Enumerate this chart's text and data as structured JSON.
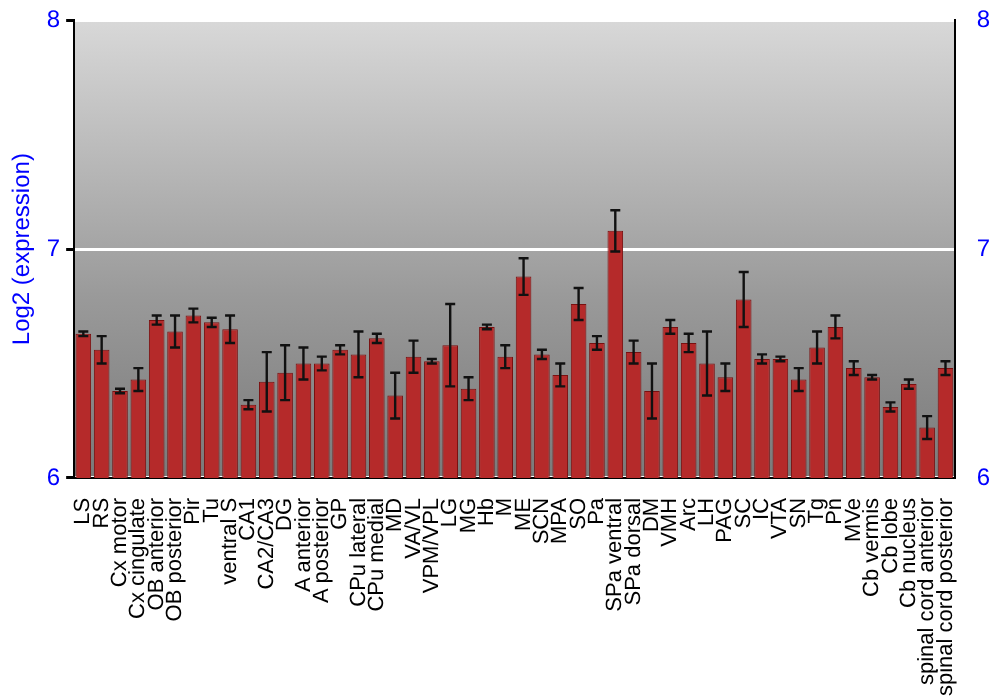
{
  "chart_data": {
    "type": "bar",
    "ylabel": "Log2 (expression)",
    "categories": [
      "LS",
      "RS",
      "Cx motor",
      "Cx cingulate",
      "OB anterior",
      "OB posterior",
      "Pir",
      "Tu",
      "ventral S",
      "CA1",
      "CA2/CA3",
      "DG",
      "A anterior",
      "A posterior",
      "GP",
      "CPu lateral",
      "CPu medial",
      "MD",
      "VA/VL",
      "VPM/VPL",
      "LG",
      "MG",
      "Hb",
      "M",
      "ME",
      "SCN",
      "MPA",
      "SO",
      "Pa",
      "SPa ventral",
      "SPa dorsal",
      "DM",
      "VMH",
      "Arc",
      "LH",
      "PAG",
      "SC",
      "IC",
      "VTA",
      "SN",
      "Tg",
      "Pn",
      "MVe",
      "Cb vermis",
      "Cb lobe",
      "Cb nucleus",
      "spinal cord anterior",
      "spinal cord posterior"
    ],
    "values": [
      6.63,
      6.56,
      6.38,
      6.43,
      6.69,
      6.64,
      6.71,
      6.68,
      6.65,
      6.32,
      6.42,
      6.46,
      6.5,
      6.5,
      6.56,
      6.54,
      6.61,
      6.36,
      6.53,
      6.51,
      6.58,
      6.39,
      6.66,
      6.53,
      6.88,
      6.54,
      6.45,
      6.76,
      6.59,
      7.08,
      6.55,
      6.38,
      6.66,
      6.59,
      6.5,
      6.44,
      6.78,
      6.52,
      6.52,
      6.43,
      6.57,
      6.66,
      6.48,
      6.44,
      6.31,
      6.41,
      6.22,
      6.48
    ],
    "errors": [
      0.01,
      0.06,
      0.01,
      0.05,
      0.02,
      0.07,
      0.03,
      0.02,
      0.06,
      0.02,
      0.13,
      0.12,
      0.07,
      0.03,
      0.02,
      0.1,
      0.02,
      0.1,
      0.07,
      0.01,
      0.18,
      0.05,
      0.01,
      0.05,
      0.08,
      0.02,
      0.05,
      0.07,
      0.03,
      0.09,
      0.05,
      0.12,
      0.03,
      0.04,
      0.14,
      0.06,
      0.12,
      0.02,
      0.01,
      0.05,
      0.07,
      0.05,
      0.03,
      0.01,
      0.02,
      0.02,
      0.05,
      0.03
    ],
    "color": "#b52a2a",
    "ylim": [
      6,
      8
    ],
    "yticks": [
      6,
      7,
      8
    ],
    "y2lim": [
      6,
      8
    ],
    "y2ticks": [
      6,
      7,
      8
    ],
    "grid": "y",
    "legend": false
  }
}
